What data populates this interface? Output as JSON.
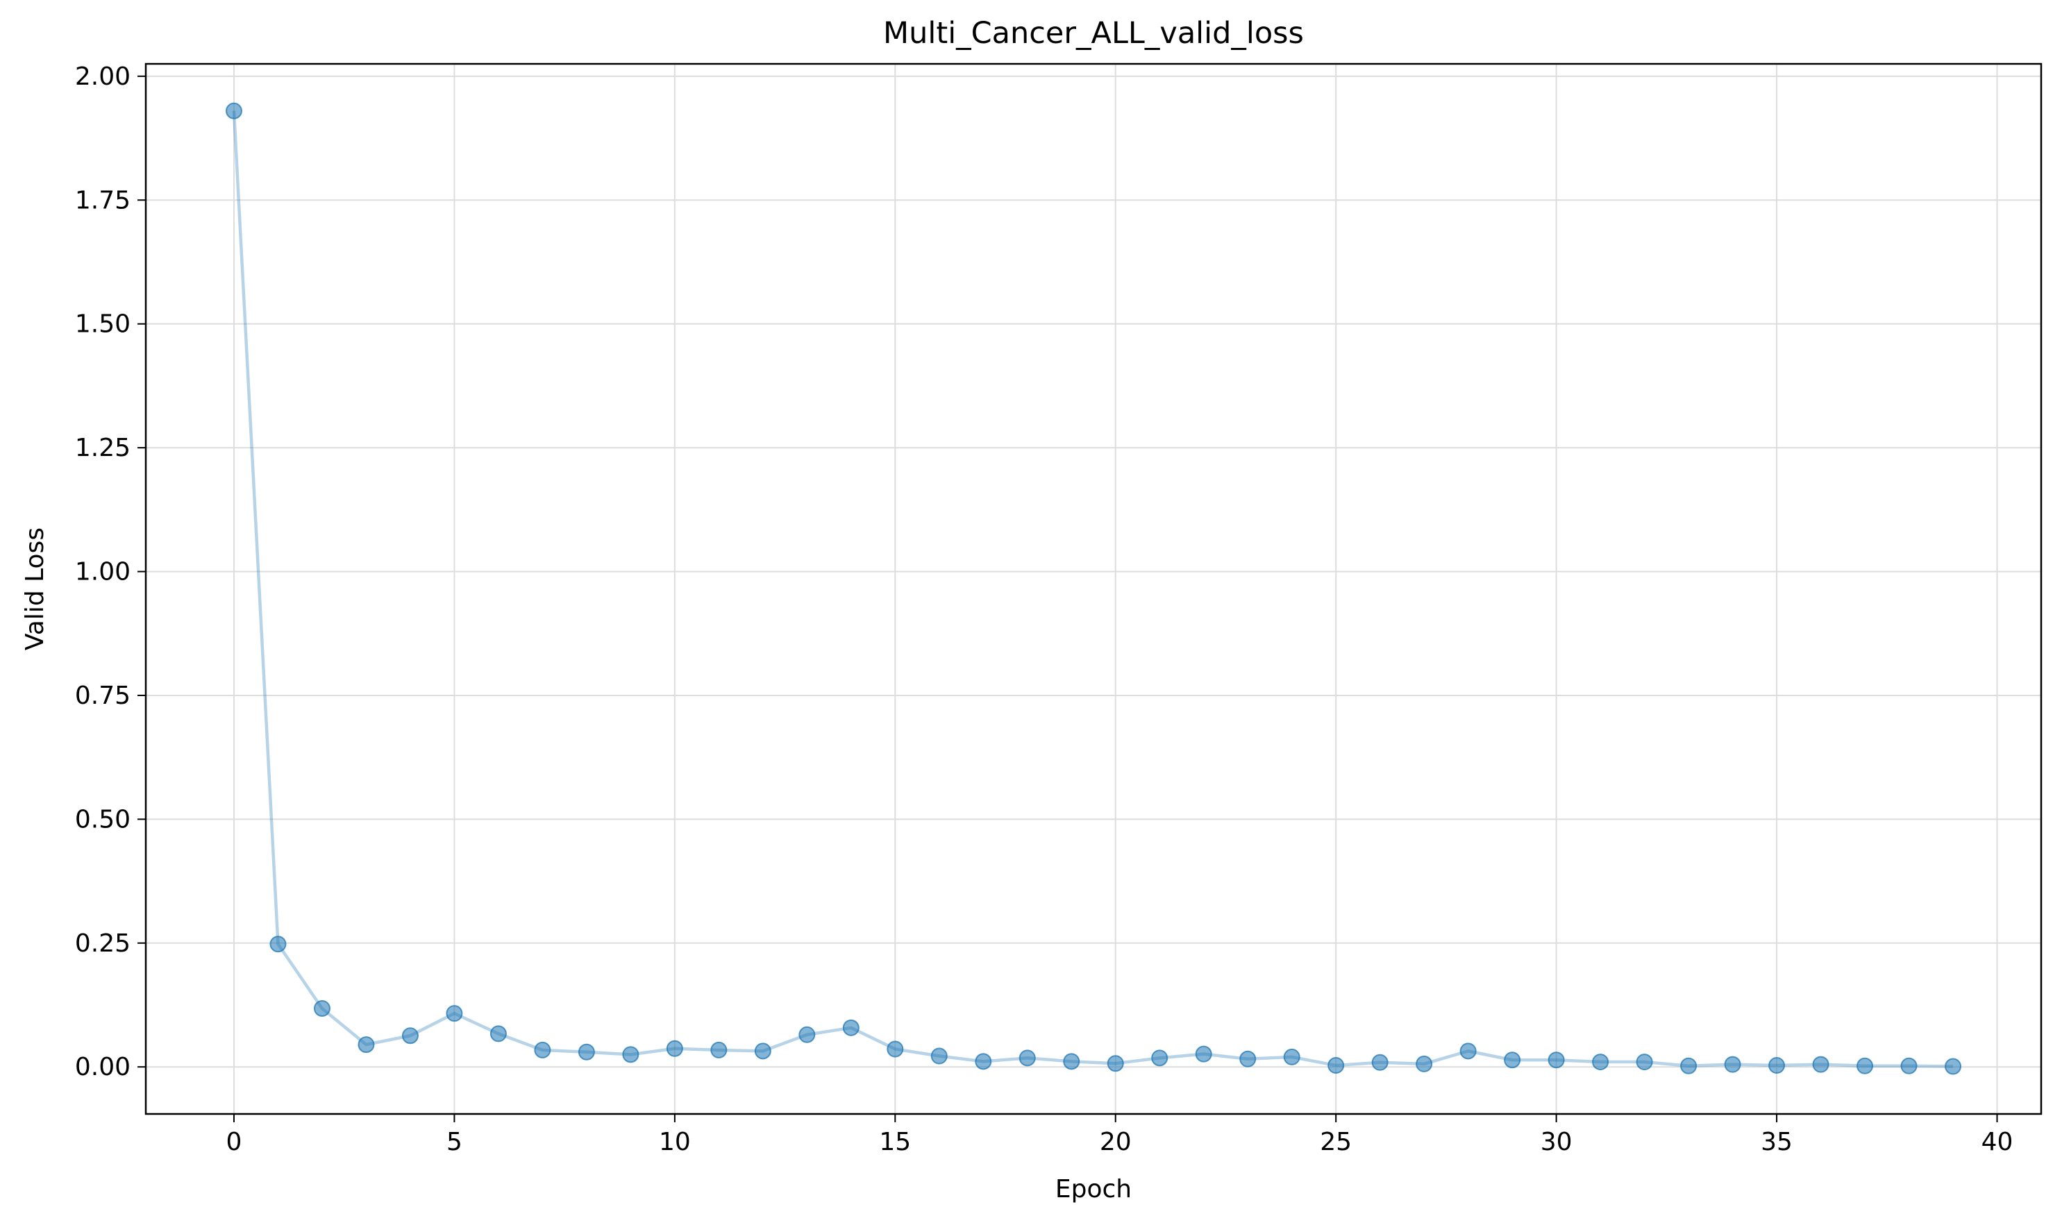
{
  "chart_data": {
    "type": "line",
    "title": "Multi_Cancer_ALL_valid_loss",
    "xlabel": "Epoch",
    "ylabel": "Valid Loss",
    "xlim": [
      -2,
      41
    ],
    "ylim": [
      -0.095,
      2.025
    ],
    "xticks": [
      0,
      5,
      10,
      15,
      20,
      25,
      30,
      35,
      40
    ],
    "xtick_labels": [
      "0",
      "5",
      "10",
      "15",
      "20",
      "25",
      "30",
      "35",
      "40"
    ],
    "yticks": [
      0.0,
      0.25,
      0.5,
      0.75,
      1.0,
      1.25,
      1.5,
      1.75,
      2.0
    ],
    "ytick_labels": [
      "0.00",
      "0.25",
      "0.50",
      "0.75",
      "1.00",
      "1.25",
      "1.50",
      "1.75",
      "2.00"
    ],
    "grid": true,
    "legend": "none",
    "line_color": "#1f77b4",
    "series": [
      {
        "x": [
          0,
          1,
          2,
          3,
          4,
          5,
          6,
          7,
          8,
          9,
          10,
          11,
          12,
          13,
          14,
          15,
          16,
          17,
          18,
          19,
          20,
          21,
          22,
          23,
          24,
          25,
          26,
          27,
          28,
          29,
          30,
          31,
          32,
          33,
          34,
          35,
          36,
          37,
          38,
          39
        ],
        "values": [
          1.93,
          0.248,
          0.118,
          0.045,
          0.063,
          0.108,
          0.067,
          0.034,
          0.03,
          0.025,
          0.037,
          0.034,
          0.032,
          0.065,
          0.079,
          0.036,
          0.022,
          0.011,
          0.018,
          0.011,
          0.007,
          0.018,
          0.026,
          0.016,
          0.02,
          0.003,
          0.009,
          0.006,
          0.032,
          0.014,
          0.014,
          0.01,
          0.01,
          0.002,
          0.005,
          0.003,
          0.005,
          0.002,
          0.002,
          0.001
        ]
      }
    ]
  }
}
